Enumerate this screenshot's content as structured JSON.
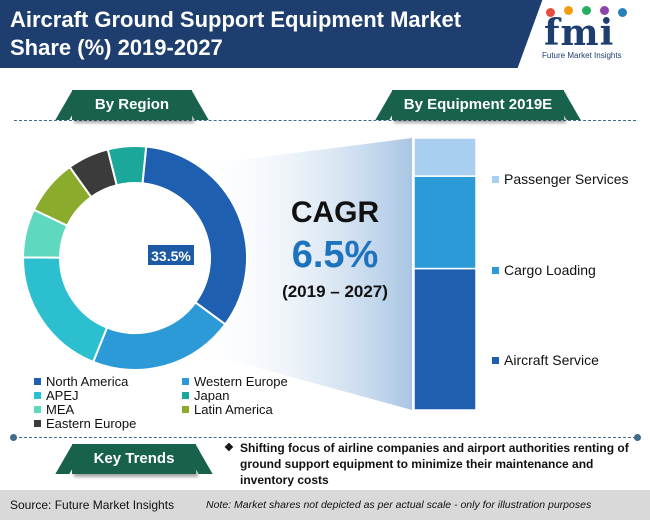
{
  "header": {
    "title": "Aircraft Ground Support Equipment Market Share (%) 2019-2027",
    "logo_text": "fmi",
    "logo_subtitle": "Future Market Insights"
  },
  "sections": {
    "region_label": "By Region",
    "equipment_label": "By Equipment 2019E",
    "trends_label": "Key Trends"
  },
  "cagr": {
    "title": "CAGR",
    "value": "6.5%",
    "period": "(2019 – 2027)"
  },
  "key_trend": "Shifting focus of airline companies and airport authorities renting of ground support equipment to minimize their maintenance and inventory costs",
  "footer": {
    "source": "Source: Future Market Insights",
    "note": "Note: Market shares not depicted as per actual scale - only for illustration purposes"
  },
  "colors": {
    "header_bg": "#1d3e6e",
    "pill_bg": "#17614d",
    "cagr_value": "#1e73be"
  },
  "chart_data": [
    {
      "type": "pie",
      "title": "By Region",
      "data_label": "33.5%",
      "categories": [
        "North America",
        "Western Europe",
        "APEJ",
        "MEA",
        "Latin America",
        "Eastern Europe",
        "Japan"
      ],
      "values": [
        33.5,
        21,
        19,
        7,
        8,
        6,
        5.5
      ],
      "colors": [
        "#1e5fb0",
        "#2b9ad6",
        "#2cbfcf",
        "#5ed9c0",
        "#8bab2c",
        "#3b3b3b",
        "#1ba89a"
      ],
      "legend": [
        {
          "label": "North America",
          "color": "#1e5fb0"
        },
        {
          "label": "Western Europe",
          "color": "#2b9ad6"
        },
        {
          "label": "APEJ",
          "color": "#2cbfcf"
        },
        {
          "label": "Japan",
          "color": "#1ba89a"
        },
        {
          "label": "MEA",
          "color": "#5ed9c0"
        },
        {
          "label": "Latin America",
          "color": "#8bab2c"
        },
        {
          "label": "Eastern Europe",
          "color": "#3b3b3b"
        }
      ]
    },
    {
      "type": "bar",
      "title": "By Equipment 2019E",
      "stacked": true,
      "categories": [
        "Aircraft Service",
        "Cargo Loading",
        "Passenger Services"
      ],
      "values": [
        52,
        34,
        14
      ],
      "colors": [
        "#1e5fb0",
        "#2b9ad6",
        "#a8cff0"
      ]
    }
  ]
}
